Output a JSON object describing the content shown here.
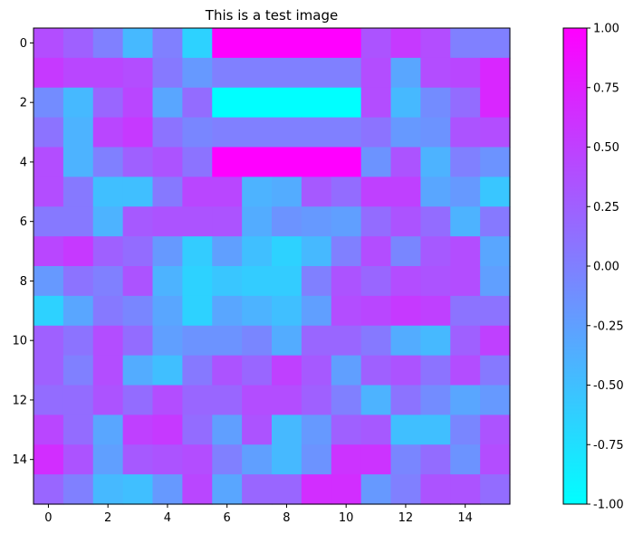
{
  "chart_data": {
    "type": "heatmap",
    "title": "This is a test image",
    "xlabel": "",
    "ylabel": "",
    "rows": 16,
    "cols": 16,
    "x_ticks": [
      0,
      2,
      4,
      6,
      8,
      10,
      12,
      14
    ],
    "y_ticks": [
      0,
      2,
      4,
      6,
      8,
      10,
      12,
      14
    ],
    "colormap": "cool",
    "color_min": "#00ffff",
    "color_max": "#ff00ff",
    "vmin": -1.0,
    "vmax": 1.0,
    "colorbar_ticks": [
      "-1.00",
      "-0.75",
      "-0.50",
      "-0.25",
      "0.00",
      "0.25",
      "0.50",
      "0.75",
      "1.00"
    ],
    "colorbar_tick_values": [
      -1.0,
      -0.75,
      -0.5,
      -0.25,
      0.0,
      0.25,
      0.5,
      0.75,
      1.0
    ],
    "values": [
      [
        0.4,
        0.25,
        0.0,
        -0.45,
        0.0,
        -0.65,
        1.0,
        1.0,
        1.0,
        1.0,
        1.0,
        0.35,
        0.55,
        0.4,
        0.0,
        0.0
      ],
      [
        0.55,
        0.45,
        0.45,
        0.4,
        0.05,
        -0.2,
        0.0,
        0.0,
        0.0,
        0.0,
        0.0,
        0.4,
        -0.3,
        0.4,
        0.45,
        0.7
      ],
      [
        -0.1,
        -0.45,
        0.2,
        0.45,
        -0.3,
        0.15,
        -1.0,
        -1.0,
        -1.0,
        -1.0,
        -1.0,
        0.4,
        -0.45,
        -0.1,
        0.15,
        0.7
      ],
      [
        0.1,
        -0.4,
        0.45,
        0.55,
        0.1,
        -0.05,
        0.0,
        0.0,
        0.0,
        0.0,
        0.0,
        0.1,
        -0.2,
        -0.15,
        0.35,
        0.4
      ],
      [
        0.4,
        -0.4,
        0.0,
        0.25,
        0.35,
        0.1,
        1.0,
        1.0,
        1.0,
        1.0,
        1.0,
        -0.15,
        0.35,
        -0.4,
        0.0,
        -0.15
      ],
      [
        0.4,
        0.05,
        -0.5,
        -0.5,
        0.05,
        0.45,
        0.45,
        -0.4,
        -0.35,
        0.3,
        0.15,
        0.5,
        0.5,
        -0.3,
        -0.2,
        -0.55
      ],
      [
        0.05,
        0.05,
        -0.4,
        0.3,
        0.35,
        0.35,
        0.35,
        -0.35,
        -0.15,
        -0.2,
        -0.25,
        0.15,
        0.35,
        0.15,
        -0.4,
        0.05
      ],
      [
        0.45,
        0.55,
        0.25,
        0.15,
        -0.2,
        -0.6,
        -0.25,
        -0.5,
        -0.65,
        -0.45,
        0.0,
        0.4,
        -0.05,
        0.3,
        0.4,
        -0.3
      ],
      [
        -0.2,
        0.1,
        0.0,
        0.35,
        -0.4,
        -0.65,
        -0.55,
        -0.6,
        -0.6,
        0.0,
        0.35,
        0.2,
        0.4,
        0.35,
        0.4,
        -0.25
      ],
      [
        -0.65,
        -0.3,
        0.05,
        -0.05,
        -0.3,
        -0.65,
        -0.3,
        -0.4,
        -0.5,
        -0.25,
        0.4,
        0.45,
        0.55,
        0.5,
        0.1,
        0.1
      ],
      [
        0.25,
        0.1,
        0.4,
        0.15,
        -0.25,
        -0.15,
        -0.15,
        -0.05,
        -0.35,
        0.2,
        0.2,
        0.05,
        -0.35,
        -0.45,
        0.25,
        0.5
      ],
      [
        0.25,
        0.0,
        0.4,
        -0.35,
        -0.5,
        0.05,
        0.35,
        0.2,
        0.5,
        0.3,
        -0.25,
        0.25,
        0.35,
        0.1,
        0.4,
        0.05
      ],
      [
        0.15,
        0.15,
        0.35,
        0.15,
        0.4,
        0.2,
        0.2,
        0.4,
        0.4,
        0.25,
        0.0,
        -0.4,
        0.1,
        -0.1,
        -0.3,
        -0.2
      ],
      [
        0.45,
        0.15,
        -0.3,
        0.5,
        0.55,
        0.15,
        -0.25,
        0.35,
        -0.45,
        -0.2,
        0.25,
        0.3,
        -0.5,
        -0.5,
        -0.05,
        0.35
      ],
      [
        0.65,
        0.35,
        -0.25,
        0.3,
        0.35,
        0.4,
        0.0,
        -0.25,
        -0.45,
        -0.15,
        0.6,
        0.6,
        -0.05,
        0.15,
        -0.15,
        0.4
      ],
      [
        0.2,
        0.0,
        -0.45,
        -0.5,
        -0.2,
        0.45,
        -0.3,
        0.2,
        0.2,
        0.65,
        0.65,
        -0.2,
        0.0,
        0.35,
        0.35,
        0.15
      ]
    ]
  }
}
